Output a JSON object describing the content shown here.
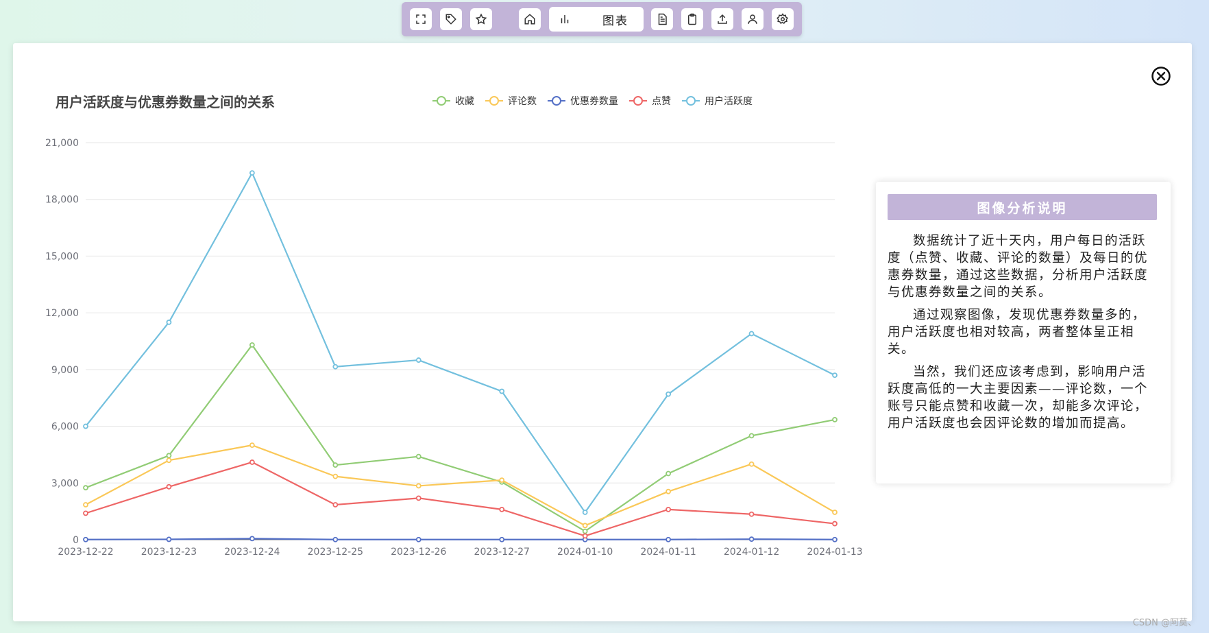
{
  "toolbar": {
    "tab_label": "图表",
    "icons": [
      "fullscreen-icon",
      "tag-icon",
      "star-icon",
      "home-icon",
      "bar-chart-icon",
      "document-icon",
      "clipboard-icon",
      "upload-icon",
      "user-icon",
      "settings-icon"
    ]
  },
  "close_icon": "close-circle-icon",
  "chart_data": {
    "type": "line",
    "title": "用户活跃度与优惠券数量之间的关系",
    "legend_position": "top",
    "grid": true,
    "ylim": [
      0,
      21000
    ],
    "yticks": [
      "0",
      "3,000",
      "6,000",
      "9,000",
      "12,000",
      "15,000",
      "18,000",
      "21,000"
    ],
    "categories": [
      "2023-12-22",
      "2023-12-23",
      "2023-12-24",
      "2023-12-25",
      "2023-12-26",
      "2023-12-27",
      "2024-01-10",
      "2024-01-11",
      "2024-01-12",
      "2024-01-13"
    ],
    "series": [
      {
        "name": "收藏",
        "color": "#91cc75",
        "values": [
          2750,
          4450,
          10300,
          3950,
          4400,
          3050,
          450,
          3500,
          5500,
          6350
        ]
      },
      {
        "name": "评论数",
        "color": "#fac858",
        "values": [
          1850,
          4200,
          5000,
          3350,
          2850,
          3150,
          750,
          2550,
          4000,
          1450
        ]
      },
      {
        "name": "优惠券数量",
        "color": "#5470c6",
        "values": [
          10,
          20,
          60,
          10,
          10,
          10,
          10,
          10,
          30,
          10
        ]
      },
      {
        "name": "点赞",
        "color": "#ee6666",
        "values": [
          1400,
          2800,
          4100,
          1850,
          2200,
          1600,
          200,
          1600,
          1350,
          850
        ]
      },
      {
        "name": "用户活跃度",
        "color": "#73c0de",
        "values": [
          6000,
          11500,
          19400,
          9150,
          9500,
          7850,
          1450,
          7700,
          10900,
          8700
        ]
      }
    ]
  },
  "analysis": {
    "title": "图像分析说明",
    "paragraphs": [
      "数据统计了近十天内，用户每日的活跃度（点赞、收藏、评论的数量）及每日的优惠券数量，通过这些数据，分析用户活跃度与优惠券数量之间的关系。",
      "通过观察图像，发现优惠券数量多的，用户活跃度也相对较高，两者整体呈正相关。",
      "当然，我们还应该考虑到，影响用户活跃度高低的一大主要因素——评论数，一个账号只能点赞和收藏一次，却能多次评论，用户活跃度也会因评论数的增加而提高。"
    ]
  },
  "watermark": "CSDN @阿莫、"
}
